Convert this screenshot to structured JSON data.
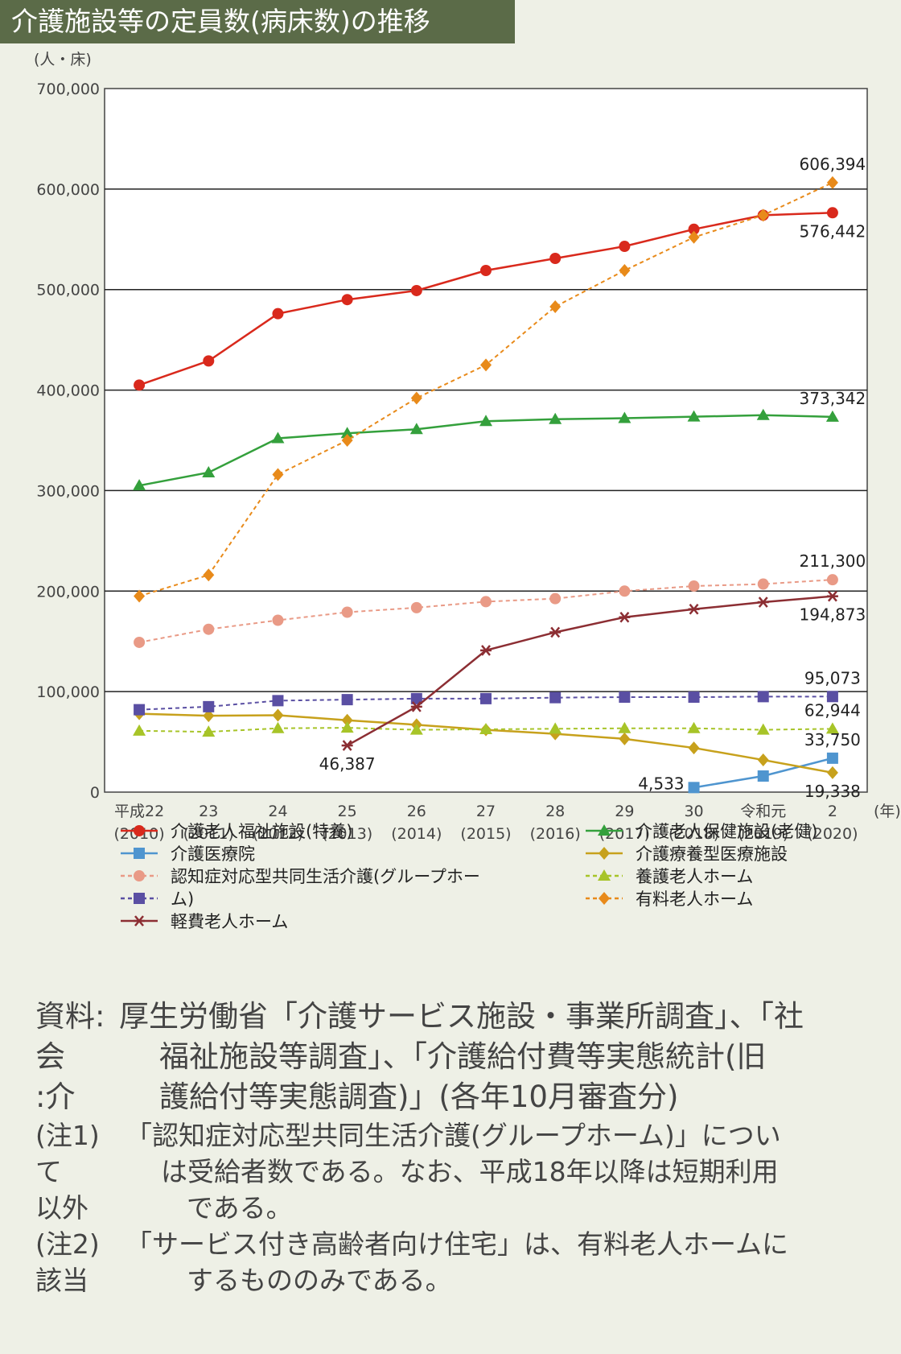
{
  "title": "介護施設等の定員数(病床数)の推移",
  "unit_label": "(人・床)",
  "year_unit": "(年)",
  "colors": {
    "title_bg": "#5b6b48",
    "page_bg": "#eef0e6",
    "tokuyo": "#d9291c",
    "roken": "#34a03c",
    "iryoin": "#4f95cf",
    "ryoyo": "#c7a11c",
    "group": "#e99a86",
    "yogo": "#a7c428",
    "yuryo": "#e88a1a",
    "keihi": "#8c2e33",
    "other": "#5a4fa3"
  },
  "chart_data": {
    "type": "line",
    "ylabel": "(人・床)",
    "ylim": [
      0,
      700000
    ],
    "yticks": [
      0,
      100000,
      200000,
      300000,
      400000,
      500000,
      600000,
      700000
    ],
    "ytick_labels": [
      "0",
      "100,000",
      "200,000",
      "300,000",
      "400,000",
      "500,000",
      "600,000",
      "700,000"
    ],
    "categories": [
      {
        "top": "平成22",
        "bottom": "(2010)"
      },
      {
        "top": "23",
        "bottom": "(2011)"
      },
      {
        "top": "24",
        "bottom": "(2012)"
      },
      {
        "top": "25",
        "bottom": "(2013)"
      },
      {
        "top": "26",
        "bottom": "(2014)"
      },
      {
        "top": "27",
        "bottom": "(2015)"
      },
      {
        "top": "28",
        "bottom": "(2016)"
      },
      {
        "top": "29",
        "bottom": "(2017)"
      },
      {
        "top": "30",
        "bottom": "(2018)"
      },
      {
        "top": "令和元",
        "bottom": "(2019)"
      },
      {
        "top": "2",
        "bottom": "(2020)"
      }
    ],
    "grid": true,
    "legend_position": "bottom",
    "series": [
      {
        "key": "tokuyo",
        "name": "介護老人福祉施設(特養)",
        "style": "solid",
        "marker": "circle",
        "color": "#d9291c",
        "values": [
          405000,
          429000,
          476000,
          490000,
          499000,
          519000,
          531000,
          543000,
          560000,
          574000,
          576442
        ]
      },
      {
        "key": "roken",
        "name": "介護老人保健施設(老健)",
        "style": "solid",
        "marker": "triangle",
        "color": "#34a03c",
        "values": [
          305000,
          318000,
          352000,
          357000,
          361000,
          369000,
          371000,
          372000,
          373500,
          375000,
          373342
        ]
      },
      {
        "key": "iryoin",
        "name": "介護医療院",
        "style": "solid",
        "marker": "square",
        "color": "#4f95cf",
        "values": [
          null,
          null,
          null,
          null,
          null,
          null,
          null,
          null,
          4533,
          16000,
          33750
        ]
      },
      {
        "key": "ryoyo",
        "name": "介護療養型医療施設",
        "style": "solid",
        "marker": "diamond",
        "color": "#c7a11c",
        "values": [
          78000,
          76000,
          76500,
          71500,
          67000,
          62000,
          58000,
          53000,
          44000,
          32000,
          19338
        ]
      },
      {
        "key": "group",
        "name": "認知症対応型共同生活介護(グループホーム)",
        "style": "dashed",
        "marker": "circle",
        "color": "#e99a86",
        "values": [
          149000,
          162000,
          171000,
          179000,
          183500,
          189500,
          192500,
          200000,
          205000,
          207000,
          211300
        ]
      },
      {
        "key": "yogo",
        "name": "養護老人ホーム",
        "style": "dashed",
        "marker": "triangle",
        "color": "#a7c428",
        "values": [
          61000,
          60000,
          63500,
          64000,
          62000,
          62500,
          63000,
          63500,
          63500,
          62000,
          62944
        ]
      },
      {
        "key": "other",
        "name": "",
        "style": "dashed",
        "marker": "square",
        "color": "#5a4fa3",
        "values": [
          82000,
          85000,
          91000,
          92000,
          93000,
          93000,
          94000,
          94500,
          94500,
          95000,
          95073
        ]
      },
      {
        "key": "yuryo",
        "name": "有料老人ホーム",
        "style": "dashed",
        "marker": "diamond",
        "color": "#e88a1a",
        "values": [
          195000,
          216000,
          316000,
          350000,
          392000,
          425000,
          483000,
          519000,
          552000,
          574000,
          606394
        ]
      },
      {
        "key": "keihi",
        "name": "軽費老人ホーム",
        "style": "solid",
        "marker": "asterisk",
        "color": "#8c2e33",
        "values": [
          null,
          null,
          null,
          46387,
          85000,
          141000,
          159000,
          174000,
          182000,
          189000,
          194873
        ]
      }
    ],
    "annotations": [
      {
        "text": "606,394",
        "series": "yuryo",
        "index": 10,
        "pos": "above"
      },
      {
        "text": "576,442",
        "series": "tokuyo",
        "index": 10,
        "pos": "below"
      },
      {
        "text": "373,342",
        "series": "roken",
        "index": 10,
        "pos": "above"
      },
      {
        "text": "211,300",
        "series": "group",
        "index": 10,
        "pos": "above"
      },
      {
        "text": "194,873",
        "series": "keihi",
        "index": 10,
        "pos": "below"
      },
      {
        "text": "95,073",
        "series": "other",
        "index": 10,
        "pos": "above"
      },
      {
        "text": "62,944",
        "series": "yogo",
        "index": 10,
        "pos": "above"
      },
      {
        "text": "33,750",
        "series": "iryoin",
        "index": 10,
        "pos": "above"
      },
      {
        "text": "19,338",
        "series": "ryoyo",
        "index": 10,
        "pos": "below"
      },
      {
        "text": "4,533",
        "series": "iryoin",
        "index": 8,
        "pos": "left"
      },
      {
        "text": "46,387",
        "series": "keihi",
        "index": 3,
        "pos": "below"
      }
    ],
    "legend": [
      {
        "series": "tokuyo",
        "label": "介護老人福祉施設(特養)",
        "col": 0,
        "row": 0
      },
      {
        "series": "iryoin",
        "label": "介護医療院",
        "col": 0,
        "row": 1
      },
      {
        "series": "group",
        "label": "認知症対応型共同生活介護(グループホー",
        "col": 0,
        "row": 2
      },
      {
        "series": "other",
        "label": "ム)",
        "col": 0,
        "row": 3
      },
      {
        "series": "keihi",
        "label": "軽費老人ホーム",
        "col": 0,
        "row": 4
      },
      {
        "series": "roken",
        "label": "介護老人保健施設(老健)",
        "col": 1,
        "row": 0
      },
      {
        "series": "ryoyo",
        "label": "介護療養型医療施設",
        "col": 1,
        "row": 1
      },
      {
        "series": "yogo",
        "label": "養護老人ホーム",
        "col": 1,
        "row": 2
      },
      {
        "series": "yuryo",
        "label": "有料老人ホーム",
        "col": 1,
        "row": 3
      }
    ]
  },
  "notes": {
    "source_label": "資料:",
    "source_lines": [
      "厚生労働省「介護サービス施設・事業所調査」、「社",
      "福祉施設等調査」、「介護給付費等実態統計(旧",
      "護給付等実態調査)」(各年10月審査分)"
    ],
    "source_side": [
      "会",
      ":介"
    ],
    "note1_label": "(注1)",
    "note1_lines": [
      "「認知症対応型共同生活介護(グループホーム)」につい",
      "は受給者数である。なお、平成18年以降は短期利用",
      "である。"
    ],
    "note1_side": [
      "て",
      "以外"
    ],
    "note2_label": "(注2)",
    "note2_lines": [
      "「サービス付き高齢者向け住宅」は、有料老人ホームに",
      "するもののみである。"
    ],
    "note2_side": [
      "該当"
    ]
  }
}
